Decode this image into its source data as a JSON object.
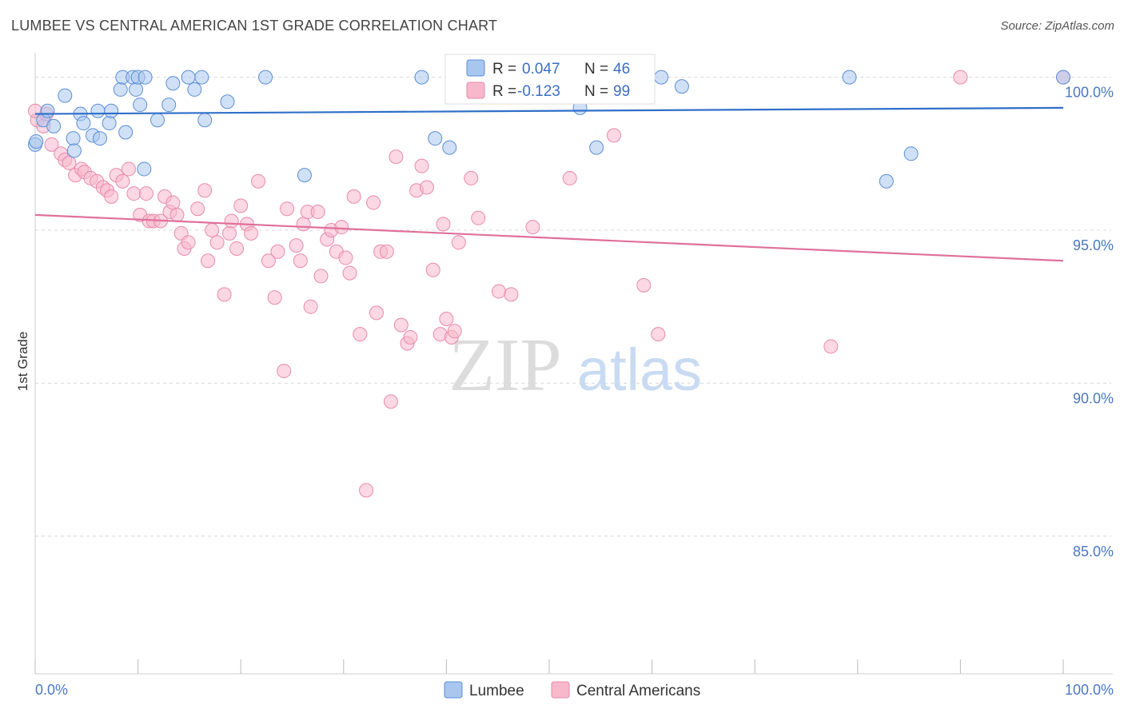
{
  "header": {
    "title": "LUMBEE VS CENTRAL AMERICAN 1ST GRADE CORRELATION CHART",
    "source": "Source: ZipAtlas.com"
  },
  "watermark": {
    "zip": "ZIP",
    "atlas": "atlas"
  },
  "colors": {
    "lumbee_fill": "#a9c6ef",
    "lumbee_stroke": "#5b8fd6",
    "lumbee_line": "#2f6fc9",
    "central_fill": "#f7b8cc",
    "central_stroke": "#e98aab",
    "central_line": "#e0709a",
    "tick_text": "#4a78c2",
    "grid": "#d8d8d8"
  },
  "legend": {
    "lumbee": {
      "r_label": "R =",
      "r_value": "0.047",
      "n_label": "N =",
      "n_value": "46"
    },
    "central": {
      "r_label": "R =",
      "r_value": "-0.123",
      "n_label": "N =",
      "n_value": "99"
    }
  },
  "chart_data": {
    "type": "scatter",
    "title": "LUMBEE VS CENTRAL AMERICAN 1ST GRADE CORRELATION CHART",
    "xlabel": "",
    "ylabel": "1st Grade",
    "xlim": [
      0,
      100
    ],
    "ylim": [
      80.5,
      100.8
    ],
    "x_tick_labels": [
      "0.0%",
      "100.0%"
    ],
    "y_ticks": [
      {
        "value": 100,
        "label": "100.0%"
      },
      {
        "value": 95,
        "label": "95.0%"
      },
      {
        "value": 90,
        "label": "90.0%"
      },
      {
        "value": 85,
        "label": "85.0%"
      }
    ],
    "grid": true,
    "legend_position": "top-center",
    "series": [
      {
        "name": "Lumbee",
        "trend": {
          "x0": 0,
          "y0": 98.8,
          "x1": 100,
          "y1": 99.0
        },
        "points": [
          [
            0.0,
            97.8
          ],
          [
            0.8,
            98.6
          ],
          [
            1.2,
            98.9
          ],
          [
            1.8,
            98.4
          ],
          [
            2.9,
            99.4
          ],
          [
            3.7,
            98.0
          ],
          [
            3.8,
            97.6
          ],
          [
            4.4,
            98.8
          ],
          [
            4.7,
            98.5
          ],
          [
            5.6,
            98.1
          ],
          [
            6.1,
            98.9
          ],
          [
            6.3,
            98.0
          ],
          [
            7.2,
            98.5
          ],
          [
            7.4,
            98.9
          ],
          [
            8.3,
            99.6
          ],
          [
            8.5,
            100.0
          ],
          [
            8.8,
            98.2
          ],
          [
            9.5,
            100.0
          ],
          [
            9.8,
            99.6
          ],
          [
            10.0,
            100.0
          ],
          [
            10.2,
            99.1
          ],
          [
            10.7,
            100.0
          ],
          [
            10.6,
            97.0
          ],
          [
            11.9,
            98.6
          ],
          [
            13.0,
            99.1
          ],
          [
            13.4,
            99.8
          ],
          [
            14.9,
            100.0
          ],
          [
            15.5,
            99.6
          ],
          [
            16.2,
            100.0
          ],
          [
            16.5,
            98.6
          ],
          [
            18.7,
            99.2
          ],
          [
            22.4,
            100.0
          ],
          [
            26.2,
            96.8
          ],
          [
            37.6,
            100.0
          ],
          [
            38.9,
            98.0
          ],
          [
            40.3,
            97.7
          ],
          [
            46.1,
            100.0
          ],
          [
            53.0,
            99.0
          ],
          [
            54.6,
            97.7
          ],
          [
            60.9,
            100.0
          ],
          [
            62.9,
            99.7
          ],
          [
            79.2,
            100.0
          ],
          [
            82.8,
            96.6
          ],
          [
            85.2,
            97.5
          ],
          [
            100.0,
            100.0
          ],
          [
            0.1,
            97.9
          ]
        ]
      },
      {
        "name": "Central Americans",
        "trend": {
          "x0": 0,
          "y0": 95.5,
          "x1": 100,
          "y1": 94.0
        },
        "points": [
          [
            0.2,
            98.6
          ],
          [
            0.8,
            98.4
          ],
          [
            1.1,
            98.8
          ],
          [
            1.6,
            97.8
          ],
          [
            2.5,
            97.5
          ],
          [
            2.9,
            97.3
          ],
          [
            3.3,
            97.2
          ],
          [
            3.9,
            96.8
          ],
          [
            4.5,
            97.0
          ],
          [
            4.8,
            96.9
          ],
          [
            5.4,
            96.7
          ],
          [
            6.0,
            96.6
          ],
          [
            6.6,
            96.4
          ],
          [
            7.0,
            96.3
          ],
          [
            7.4,
            96.1
          ],
          [
            7.9,
            96.8
          ],
          [
            8.5,
            96.6
          ],
          [
            9.1,
            97.0
          ],
          [
            9.6,
            96.2
          ],
          [
            10.2,
            95.5
          ],
          [
            10.8,
            96.2
          ],
          [
            11.1,
            95.3
          ],
          [
            11.5,
            95.3
          ],
          [
            12.2,
            95.3
          ],
          [
            12.6,
            96.1
          ],
          [
            13.1,
            95.6
          ],
          [
            13.4,
            95.9
          ],
          [
            13.8,
            95.5
          ],
          [
            14.2,
            94.9
          ],
          [
            14.5,
            94.4
          ],
          [
            14.9,
            94.6
          ],
          [
            15.8,
            95.7
          ],
          [
            16.5,
            96.3
          ],
          [
            16.8,
            94.0
          ],
          [
            17.2,
            95.0
          ],
          [
            17.7,
            94.6
          ],
          [
            18.4,
            92.9
          ],
          [
            18.9,
            94.9
          ],
          [
            19.1,
            95.3
          ],
          [
            19.6,
            94.4
          ],
          [
            20.0,
            95.8
          ],
          [
            20.6,
            95.2
          ],
          [
            21.0,
            94.9
          ],
          [
            21.7,
            96.6
          ],
          [
            22.7,
            94.0
          ],
          [
            23.3,
            92.8
          ],
          [
            23.6,
            94.3
          ],
          [
            24.2,
            90.4
          ],
          [
            24.5,
            95.7
          ],
          [
            25.4,
            94.5
          ],
          [
            25.8,
            94.0
          ],
          [
            26.1,
            95.2
          ],
          [
            26.5,
            95.6
          ],
          [
            26.8,
            92.5
          ],
          [
            27.5,
            95.6
          ],
          [
            27.8,
            93.5
          ],
          [
            28.4,
            94.7
          ],
          [
            28.8,
            95.0
          ],
          [
            29.3,
            94.3
          ],
          [
            29.8,
            95.1
          ],
          [
            30.2,
            94.1
          ],
          [
            30.6,
            93.6
          ],
          [
            31.0,
            96.1
          ],
          [
            31.6,
            91.6
          ],
          [
            32.2,
            86.5
          ],
          [
            32.9,
            95.9
          ],
          [
            33.2,
            92.3
          ],
          [
            33.6,
            94.3
          ],
          [
            34.2,
            94.3
          ],
          [
            34.6,
            89.4
          ],
          [
            35.1,
            97.4
          ],
          [
            35.6,
            91.9
          ],
          [
            36.2,
            91.3
          ],
          [
            36.5,
            91.5
          ],
          [
            37.1,
            96.3
          ],
          [
            37.6,
            97.1
          ],
          [
            38.1,
            96.4
          ],
          [
            38.7,
            93.7
          ],
          [
            39.4,
            91.6
          ],
          [
            39.7,
            95.2
          ],
          [
            40.0,
            92.1
          ],
          [
            40.5,
            91.5
          ],
          [
            40.8,
            91.7
          ],
          [
            41.2,
            94.6
          ],
          [
            42.4,
            96.7
          ],
          [
            43.1,
            95.4
          ],
          [
            43.8,
            100.0
          ],
          [
            45.1,
            93.0
          ],
          [
            46.3,
            92.9
          ],
          [
            48.4,
            95.1
          ],
          [
            52.0,
            96.7
          ],
          [
            56.3,
            98.1
          ],
          [
            59.2,
            93.2
          ],
          [
            59.4,
            100.0
          ],
          [
            60.6,
            91.6
          ],
          [
            77.4,
            91.2
          ],
          [
            90.0,
            100.0
          ],
          [
            100.0,
            100.0
          ],
          [
            0.0,
            98.9
          ]
        ]
      }
    ]
  },
  "bottom_legend": [
    {
      "label": "Lumbee"
    },
    {
      "label": "Central Americans"
    }
  ]
}
